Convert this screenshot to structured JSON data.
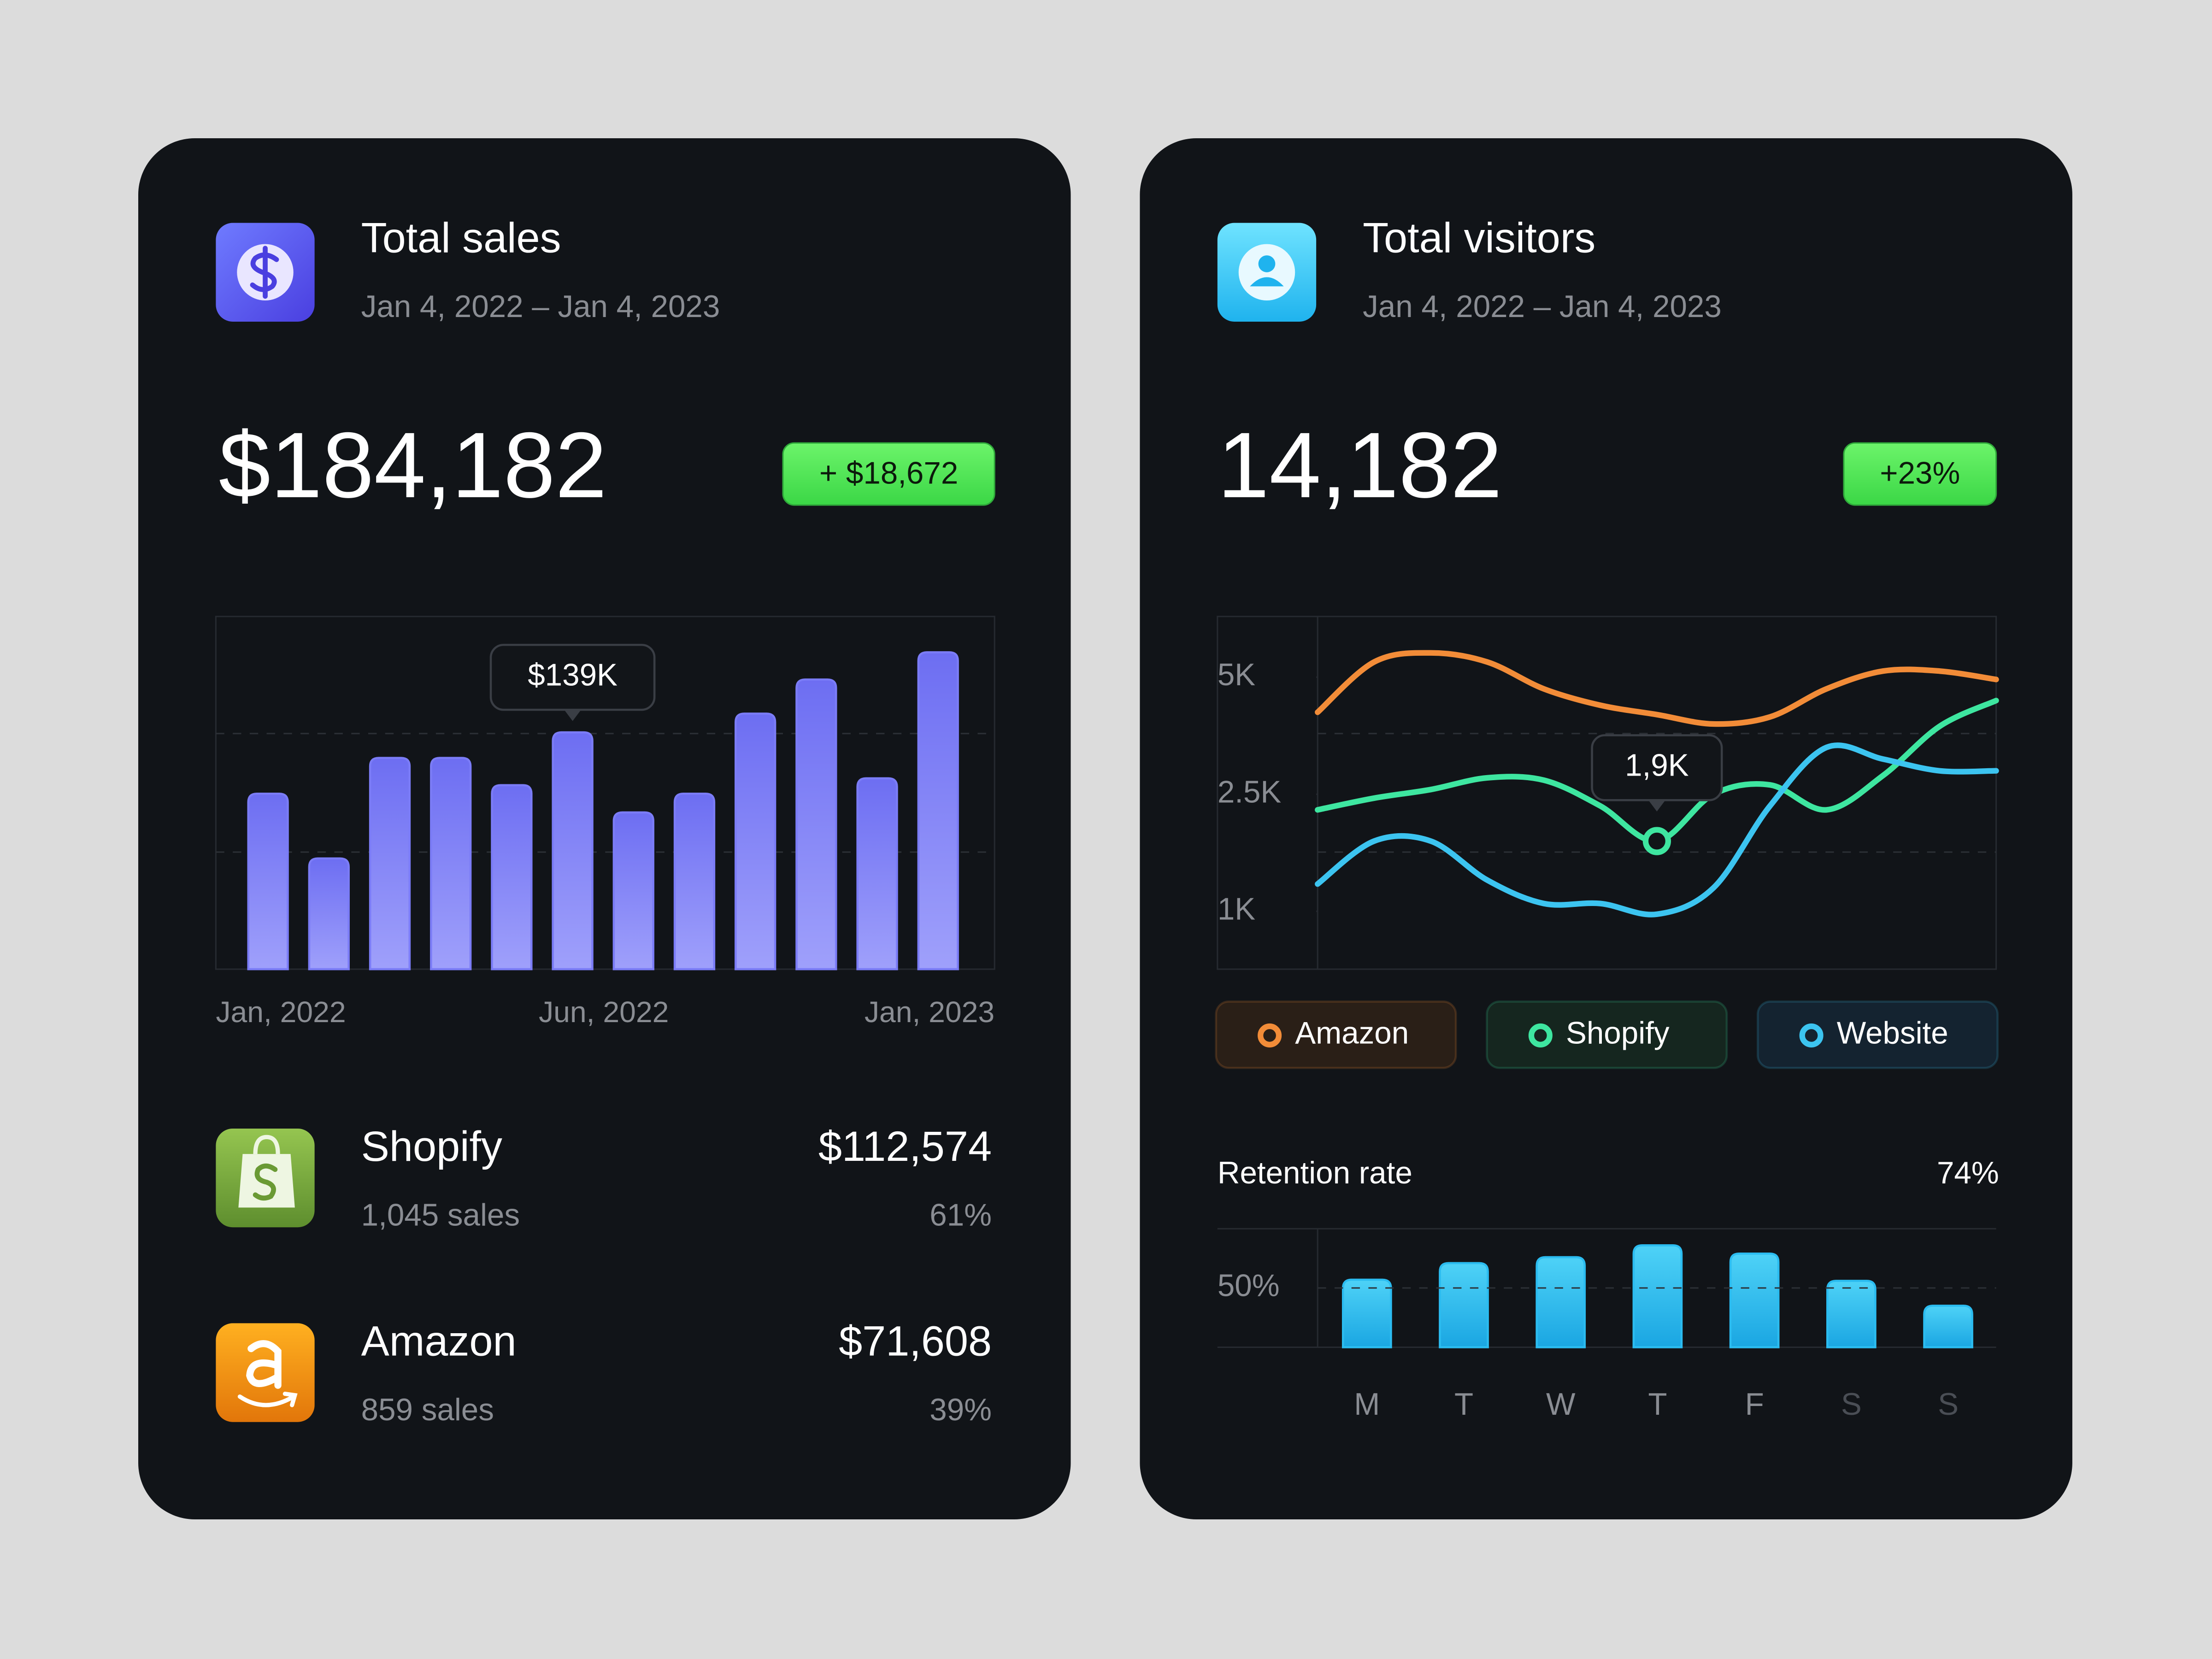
{
  "sales_card": {
    "title": "Total sales",
    "date_range": "Jan 4, 2022 – Jan 4, 2023",
    "total": "$184,182",
    "change": "+ $18,672",
    "chart": {
      "type": "bar",
      "values": [
        103,
        65,
        124,
        124,
        108,
        139,
        92,
        103,
        150,
        170,
        112,
        186
      ],
      "value_labels": [
        null,
        null,
        null,
        null,
        null,
        "$139K",
        null,
        null,
        null,
        null,
        null,
        null
      ],
      "ylim": [
        0,
        207
      ],
      "color": "#7b7cf6",
      "x_labels": [
        "Jan, 2022",
        "Jun, 2022",
        "Jan, 2023"
      ]
    },
    "channels": [
      {
        "name": "Shopify",
        "sales": "1,045 sales",
        "revenue": "$112,574",
        "share": "61%"
      },
      {
        "name": "Amazon",
        "sales": "859 sales",
        "revenue": "$71,608",
        "share": "39%"
      }
    ]
  },
  "visitors_card": {
    "title": "Total visitors",
    "date_range": "Jan 4, 2022 – Jan 4, 2023",
    "total": "14,182",
    "change": "+23%",
    "chart": {
      "type": "line",
      "ylim": [
        0,
        6000
      ],
      "yticks": [
        {
          "value": 1000,
          "label": "1K"
        },
        {
          "value": 2500,
          "label": "2.5K"
        },
        {
          "value": 5000,
          "label": "5K"
        }
      ],
      "series": [
        {
          "name": "Amazon",
          "color": "#f28c38",
          "values": [
            4250,
            5250,
            5400,
            5250,
            4750,
            4400,
            4200,
            4000,
            4150,
            4750,
            5100,
            5100,
            4950
          ]
        },
        {
          "name": "Shopify",
          "color": "#3ee6a0",
          "values": [
            2300,
            2450,
            2600,
            2850,
            2800,
            2350,
            1900,
            2500,
            2700,
            2300,
            2900,
            3950,
            4500
          ],
          "value_labels": [
            null,
            null,
            null,
            null,
            null,
            null,
            "1,9K",
            null,
            null,
            null,
            null,
            null,
            null
          ]
        },
        {
          "name": "Website",
          "color": "#3cc4f0",
          "values": [
            1350,
            1900,
            1900,
            1400,
            1100,
            1100,
            950,
            1300,
            2350,
            3500,
            3250,
            3000,
            3000
          ]
        }
      ]
    },
    "retention": {
      "type": "bar",
      "title": "Retention rate",
      "rate": "74%",
      "categories": [
        "M",
        "T",
        "W",
        "T",
        "F",
        "S",
        "S"
      ],
      "values": [
        57,
        71,
        76,
        86,
        79,
        56,
        35
      ],
      "color": "#2bbcf0",
      "ylim": [
        0,
        100
      ],
      "yticks": [
        {
          "value": 50,
          "label": "50%"
        }
      ]
    }
  }
}
